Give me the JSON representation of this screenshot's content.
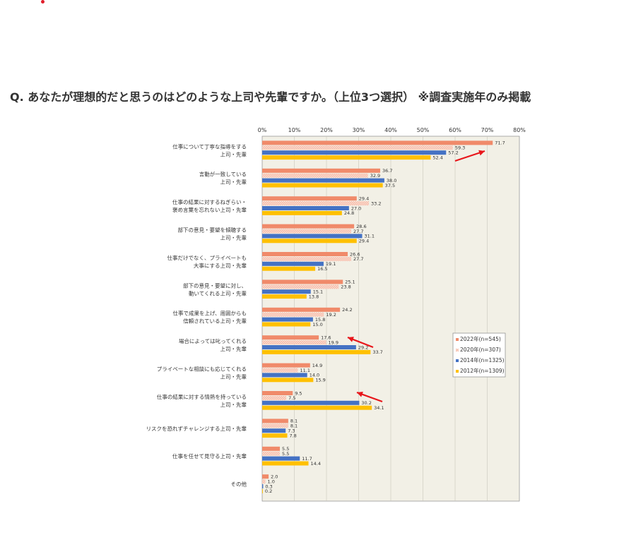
{
  "page": {
    "question": "Q. あなたが理想的だと思うのはどのような上司や先輩ですか。（上位3つ選択） ※調査実施年のみ掲載"
  },
  "colors": {
    "s2022": "#f08a6a",
    "s2020": "#f5b9a4",
    "s2014": "#4472c4",
    "s2012": "#ffc000",
    "plot_bg": "#f2f0e6",
    "arrow": "#e8161b"
  },
  "chart_data": {
    "type": "bar",
    "orientation": "horizontal",
    "title": "",
    "xlabel": "",
    "ylabel": "",
    "xlim": [
      0,
      80
    ],
    "x_ticks": [
      "0%",
      "10%",
      "20%",
      "30%",
      "40%",
      "50%",
      "60%",
      "70%",
      "80%"
    ],
    "grid": true,
    "legend_position": "right",
    "categories": [
      [
        "仕事について丁寧な指導をする",
        "上司・先輩"
      ],
      [
        "言動が一致している",
        "上司・先輩"
      ],
      [
        "仕事の結果に対するねぎらい・",
        "褒め言葉を忘れない上司・先輩"
      ],
      [
        "部下の意見・要望を傾聴する",
        "上司・先輩"
      ],
      [
        "仕事だけでなく、プライベートも",
        "大事にする上司・先輩"
      ],
      [
        "部下の意見・要望に対し、",
        "動いてくれる上司・先輩"
      ],
      [
        "仕事で成果を上げ、周囲からも",
        "信頼されている上司・先輩"
      ],
      [
        "場合によっては叱ってくれる",
        "上司・先輩"
      ],
      [
        "プライベートな相談にも応じてくれる",
        "上司・先輩"
      ],
      [
        "仕事の結果に対する情熱を持っている",
        "上司・先輩"
      ],
      [
        "リスクを恐れずチャレンジする上司・先輩"
      ],
      [
        "仕事を任せて見守る上司・先輩"
      ],
      [
        "その他"
      ]
    ],
    "series": [
      {
        "name": "2022年(n=545)",
        "values": [
          71.7,
          36.7,
          29.4,
          28.6,
          26.6,
          25.1,
          24.2,
          17.6,
          14.9,
          9.5,
          8.1,
          5.5,
          2.0
        ]
      },
      {
        "name": "2020年(n=307)",
        "values": [
          59.3,
          32.9,
          33.2,
          27.7,
          27.7,
          23.8,
          19.2,
          19.9,
          11.1,
          7.5,
          8.1,
          5.5,
          1.0
        ]
      },
      {
        "name": "2014年(n=1325)",
        "values": [
          57.2,
          38.0,
          27.0,
          31.1,
          19.1,
          15.1,
          15.8,
          29.2,
          14.0,
          30.2,
          7.3,
          11.7,
          0.3
        ]
      },
      {
        "name": "2012年(n=1309)",
        "values": [
          52.4,
          37.5,
          24.8,
          29.4,
          16.5,
          13.8,
          15.0,
          33.7,
          15.9,
          34.1,
          7.8,
          14.4,
          0.2
        ]
      }
    ]
  }
}
